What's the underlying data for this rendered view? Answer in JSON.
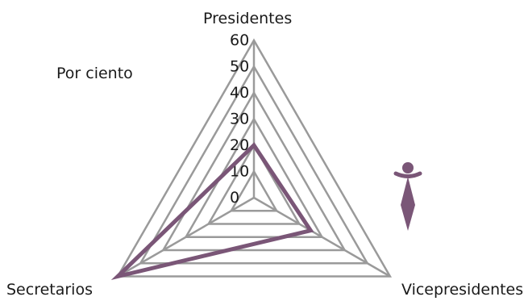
{
  "chart_data": {
    "type": "radar",
    "unit_label": "Por ciento",
    "axes": [
      "Presidentes",
      "Vicepresidentes",
      "Secretarios"
    ],
    "ticks": [
      "0",
      "10",
      "20",
      "30",
      "40",
      "50",
      "60"
    ],
    "rmax": 60,
    "series": [
      {
        "values": [
          20,
          25,
          60
        ]
      }
    ],
    "grid": true,
    "colors": {
      "grid": "#9a9a9a",
      "series": "#7a5677",
      "icon": "#7a5677"
    },
    "legend_icon": "female-symbol-icon"
  }
}
